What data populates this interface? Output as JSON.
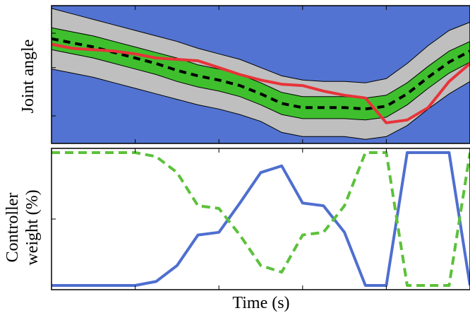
{
  "chart_data": [
    {
      "type": "line",
      "panel": "top",
      "title": "",
      "xlabel": "",
      "ylabel": "Joint angle",
      "xlim": [
        0,
        10
      ],
      "ylim": [
        0,
        10
      ],
      "x_ticks_labeled": false,
      "y_ticks_labeled": false,
      "background_color": "#5273d1",
      "band_outer_color": "#bfbfbf",
      "band_inner_color": "#3fbf2e",
      "x": [
        0,
        0.5,
        1,
        1.5,
        2,
        2.5,
        3,
        3.5,
        4,
        4.5,
        5,
        5.5,
        6,
        6.5,
        7,
        7.5,
        8,
        8.5,
        9,
        9.5,
        10
      ],
      "series": [
        {
          "style": "dashed",
          "color": "#000000",
          "values": [
            7.6,
            7.3,
            7.0,
            6.6,
            6.2,
            5.8,
            5.3,
            4.9,
            4.6,
            4.2,
            3.6,
            2.9,
            2.6,
            2.6,
            2.6,
            2.5,
            2.7,
            3.6,
            4.8,
            5.9,
            6.7
          ]
        },
        {
          "style": "band",
          "color": "#bfbfbf",
          "upper": [
            9.8,
            9.4,
            9.0,
            8.6,
            8.2,
            7.8,
            7.4,
            6.9,
            6.5,
            6.1,
            5.5,
            4.9,
            4.6,
            4.5,
            4.5,
            4.4,
            4.7,
            5.8,
            7.1,
            8.2,
            8.8
          ],
          "lower": [
            5.4,
            5.1,
            4.8,
            4.4,
            4.0,
            3.6,
            3.2,
            2.8,
            2.5,
            2.1,
            1.6,
            0.8,
            0.5,
            0.5,
            0.5,
            0.3,
            0.5,
            1.3,
            2.5,
            3.6,
            4.5
          ]
        },
        {
          "style": "band",
          "color": "#3fbf2e",
          "upper": [
            8.4,
            8.1,
            7.8,
            7.4,
            7.0,
            6.6,
            6.2,
            5.7,
            5.4,
            5.0,
            4.4,
            3.7,
            3.4,
            3.4,
            3.4,
            3.3,
            3.5,
            4.4,
            5.6,
            6.7,
            7.4
          ],
          "lower": [
            6.8,
            6.5,
            6.2,
            5.8,
            5.4,
            5.0,
            4.5,
            4.1,
            3.8,
            3.4,
            2.8,
            2.1,
            1.8,
            1.8,
            1.8,
            1.7,
            1.9,
            2.8,
            4.0,
            5.1,
            5.9
          ]
        },
        {
          "style": "solid",
          "color": "#e8333a",
          "values": [
            7.2,
            6.9,
            6.8,
            6.7,
            6.5,
            6.2,
            6.1,
            6.0,
            5.5,
            5.0,
            4.6,
            4.3,
            4.2,
            3.8,
            3.5,
            3.3,
            1.5,
            1.7,
            2.6,
            4.5,
            5.8
          ]
        }
      ]
    },
    {
      "type": "line",
      "panel": "bottom",
      "title": "",
      "xlabel": "Time (s)",
      "ylabel": "Controller weight (%)",
      "ylabel_lines": [
        "Controller",
        "weight (%)"
      ],
      "xlim": [
        0,
        10
      ],
      "ylim": [
        0,
        100
      ],
      "x_ticks_labeled": false,
      "y_ticks_labeled": false,
      "x": [
        0,
        0.5,
        1,
        1.5,
        2,
        2.5,
        3,
        3.5,
        4,
        4.5,
        5,
        5.5,
        6,
        6.5,
        7,
        7.5,
        8,
        8.5,
        9,
        9.5,
        10
      ],
      "series": [
        {
          "style": "solid",
          "color": "#4f6fcf",
          "values": [
            0,
            0,
            0,
            0,
            0,
            3,
            15,
            38,
            40,
            62,
            85,
            90,
            62,
            60,
            40,
            0,
            0,
            100,
            100,
            100,
            0
          ]
        },
        {
          "style": "dashed",
          "color": "#5cc13b",
          "values": [
            100,
            100,
            100,
            100,
            100,
            97,
            85,
            60,
            58,
            38,
            15,
            10,
            38,
            40,
            60,
            100,
            100,
            0,
            0,
            0,
            100
          ]
        }
      ]
    }
  ]
}
